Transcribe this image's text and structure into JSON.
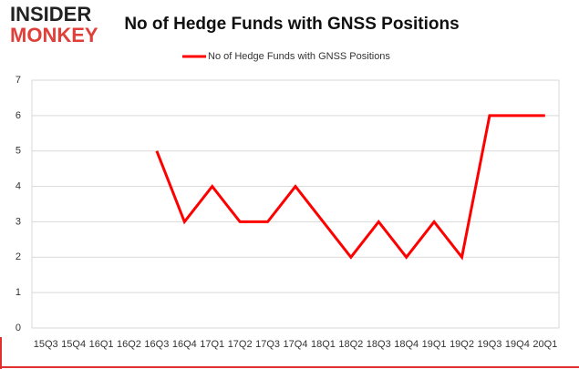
{
  "logo": {
    "line1": "INSIDER",
    "line2": "MONKEY"
  },
  "chart_data": {
    "type": "line",
    "title": "No of Hedge Funds with GNSS Positions",
    "categories": [
      "15Q3",
      "15Q4",
      "16Q1",
      "16Q2",
      "16Q3",
      "16Q4",
      "17Q1",
      "17Q2",
      "17Q3",
      "17Q4",
      "18Q1",
      "18Q2",
      "18Q3",
      "18Q4",
      "19Q1",
      "19Q2",
      "19Q3",
      "19Q4",
      "20Q1"
    ],
    "series": [
      {
        "name": "No of Hedge Funds with GNSS Positions",
        "color": "#ff0000",
        "values": [
          null,
          null,
          null,
          null,
          5,
          3,
          4,
          3,
          3,
          4,
          3,
          2,
          3,
          2,
          3,
          2,
          6,
          6,
          6
        ]
      }
    ],
    "ylim": [
      0,
      7
    ],
    "yticks": [
      0,
      1,
      2,
      3,
      4,
      5,
      6,
      7
    ],
    "grid": true,
    "legend": "top"
  }
}
